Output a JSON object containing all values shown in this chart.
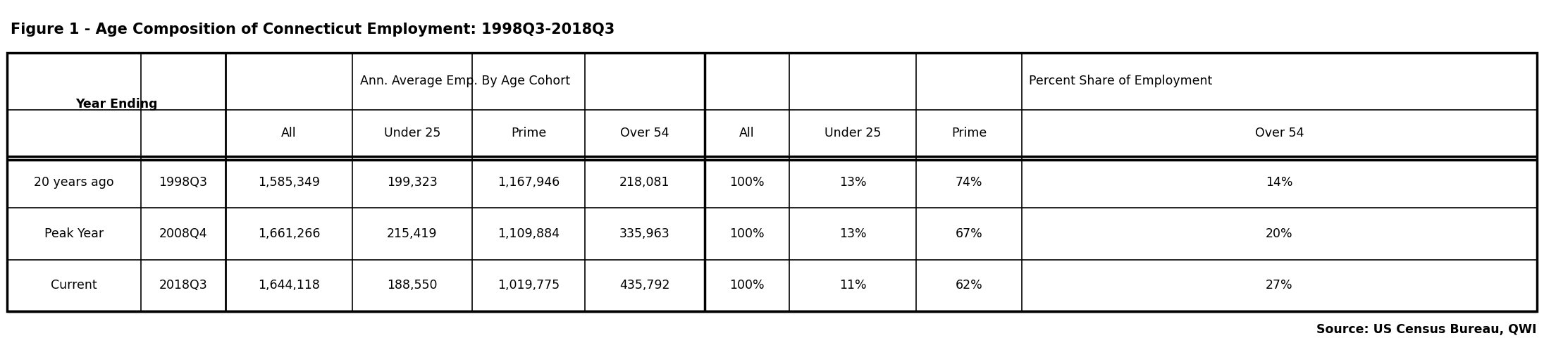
{
  "title": "Figure 1 - Age Composition of Connecticut Employment: 1998Q3-2018Q3",
  "source": "Source: US Census Bureau, QWI",
  "header1": "Ann. Average Emp. By Age Cohort",
  "header2": "Percent Share of Employment",
  "col_header_left": "Year Ending",
  "sub_headers_emp": [
    "All",
    "Under 25",
    "Prime",
    "Over 54"
  ],
  "sub_headers_pct": [
    "All",
    "Under 25",
    "Prime",
    "Over 54"
  ],
  "rows": [
    {
      "label1": "20 years ago",
      "label2": "1998Q3",
      "emp_all": "1,585,349",
      "emp_u25": "199,323",
      "emp_prime": "1,167,946",
      "emp_o54": "218,081",
      "pct_all": "100%",
      "pct_u25": "13%",
      "pct_prime": "74%",
      "pct_o54": "14%"
    },
    {
      "label1": "Peak Year",
      "label2": "2008Q4",
      "emp_all": "1,661,266",
      "emp_u25": "215,419",
      "emp_prime": "1,109,884",
      "emp_o54": "335,963",
      "pct_all": "100%",
      "pct_u25": "13%",
      "pct_prime": "67%",
      "pct_o54": "20%"
    },
    {
      "label1": "Current",
      "label2": "2018Q3",
      "emp_all": "1,644,118",
      "emp_u25": "188,550",
      "emp_prime": "1,019,775",
      "emp_o54": "435,792",
      "pct_all": "100%",
      "pct_u25": "11%",
      "pct_prime": "62%",
      "pct_o54": "27%"
    }
  ],
  "bg_color": "#ffffff",
  "border_color": "#000000",
  "title_fontsize": 15,
  "header_fontsize": 12.5,
  "cell_fontsize": 12.5,
  "source_fontsize": 12.5,
  "fig_width": 21.91,
  "fig_height": 4.97,
  "dpi": 100
}
